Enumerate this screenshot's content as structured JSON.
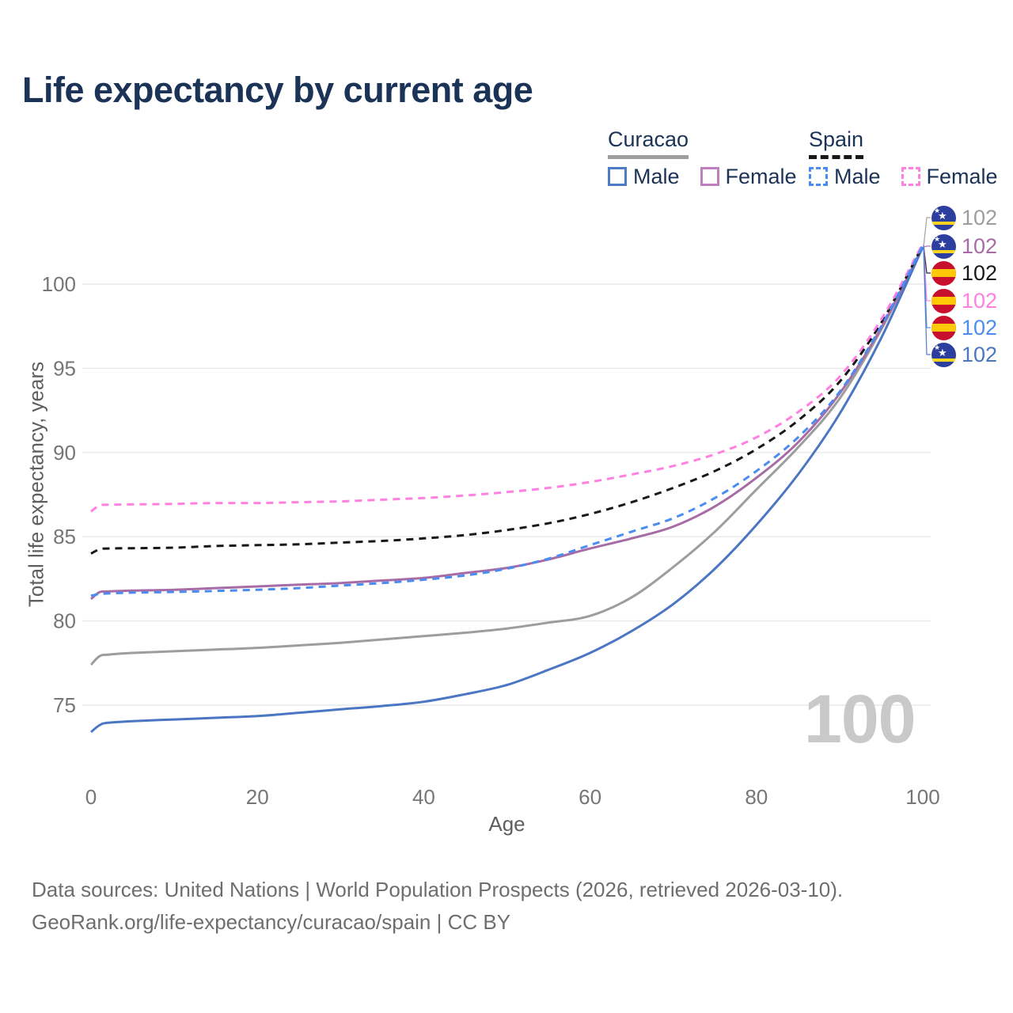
{
  "page": {
    "title": "Life expectancy by current age",
    "watermark_age": "100",
    "footer": {
      "line1": "Data sources: United Nations | World Population Prospects (2026, retrieved 2026-03-10).",
      "line2": "GeoRank.org/life-expectancy/curacao/spain | CC BY"
    }
  },
  "legend": {
    "groups": [
      {
        "label": "Curacao",
        "underline_style": "solid",
        "underline_color": "#9e9e9e",
        "items": [
          {
            "label": "Male",
            "swatch_color": "#4d7bc5",
            "swatch_style": "solid"
          },
          {
            "label": "Female",
            "swatch_color": "#c07fbe",
            "swatch_style": "solid"
          }
        ]
      },
      {
        "label": "Spain",
        "underline_style": "dashed",
        "underline_color": "#181818",
        "items": [
          {
            "label": "Male",
            "swatch_color": "#4a8cf0",
            "swatch_style": "dashed"
          },
          {
            "label": "Female",
            "swatch_color": "#ff80e0",
            "swatch_style": "dashed"
          }
        ]
      }
    ]
  },
  "axes": {
    "x_label": "Age",
    "y_label": "Total life expectancy, years"
  },
  "flag_colors": {
    "curacao": {
      "field": "#2d3f9e",
      "stripe": "#f8d51e",
      "star": "#ffffff"
    },
    "spain": {
      "field": "#c8102e",
      "band": "#ffc808"
    }
  },
  "chart_data": {
    "type": "line",
    "title": "Life expectancy by current age",
    "xlabel": "Age",
    "ylabel": "Total life expectancy, years",
    "x_ticks": [
      0,
      20,
      40,
      60,
      80,
      100
    ],
    "y_ticks": [
      75,
      80,
      85,
      90,
      95,
      100
    ],
    "xlim": [
      0,
      100
    ],
    "ylim": [
      73,
      103
    ],
    "grid": true,
    "legend_position": "top-right",
    "current_age_indicator": "100",
    "ages": [
      0,
      1,
      2,
      5,
      10,
      15,
      20,
      25,
      30,
      35,
      40,
      45,
      50,
      55,
      60,
      65,
      70,
      75,
      80,
      85,
      90,
      95,
      100
    ],
    "series": [
      {
        "name": "Curacao total",
        "country": "Curacao",
        "sex": "total",
        "flag": "curacao",
        "color": "#9d9d9d",
        "dash": false,
        "end_label": "102",
        "values": [
          77.4,
          77.9,
          78.0,
          78.1,
          78.2,
          78.3,
          78.4,
          78.55,
          78.7,
          78.9,
          79.1,
          79.3,
          79.55,
          79.9,
          80.3,
          81.4,
          83.2,
          85.3,
          87.8,
          90.3,
          93.2,
          97.3,
          102.2
        ]
      },
      {
        "name": "Curacao female",
        "country": "Curacao",
        "sex": "female",
        "flag": "curacao",
        "color": "#a76ba5",
        "dash": false,
        "end_label": "102",
        "values": [
          81.3,
          81.7,
          81.75,
          81.8,
          81.85,
          81.95,
          82.05,
          82.15,
          82.25,
          82.4,
          82.55,
          82.85,
          83.15,
          83.65,
          84.3,
          84.9,
          85.6,
          86.8,
          88.5,
          90.6,
          93.5,
          97.4,
          102.2
        ]
      },
      {
        "name": "Spain total",
        "country": "Spain",
        "sex": "total",
        "flag": "spain",
        "color": "#181818",
        "dash": true,
        "end_label": "102",
        "values": [
          84.0,
          84.25,
          84.3,
          84.32,
          84.35,
          84.45,
          84.5,
          84.55,
          84.65,
          84.75,
          84.9,
          85.1,
          85.4,
          85.8,
          86.35,
          87.05,
          87.9,
          88.9,
          90.2,
          91.9,
          94.2,
          97.7,
          102.3
        ]
      },
      {
        "name": "Spain female",
        "country": "Spain",
        "sex": "female",
        "flag": "spain",
        "color": "#ff80e0",
        "dash": true,
        "end_label": "102",
        "values": [
          86.5,
          86.85,
          86.9,
          86.92,
          86.95,
          87.0,
          87.0,
          87.05,
          87.1,
          87.2,
          87.3,
          87.45,
          87.65,
          87.9,
          88.25,
          88.7,
          89.2,
          89.9,
          90.9,
          92.4,
          94.5,
          97.9,
          102.4
        ]
      },
      {
        "name": "Spain male",
        "country": "Spain",
        "sex": "male",
        "flag": "spain",
        "color": "#4a8cf0",
        "dash": true,
        "end_label": "102",
        "values": [
          81.5,
          81.6,
          81.63,
          81.68,
          81.72,
          81.78,
          81.85,
          81.95,
          82.1,
          82.25,
          82.45,
          82.7,
          83.1,
          83.7,
          84.5,
          85.3,
          86.1,
          87.3,
          88.9,
          90.9,
          93.6,
          97.5,
          102.3
        ]
      },
      {
        "name": "Curacao male",
        "country": "Curacao",
        "sex": "male",
        "flag": "curacao",
        "color": "#4b76c4",
        "dash": false,
        "end_label": "102",
        "values": [
          73.4,
          73.8,
          73.95,
          74.05,
          74.15,
          74.25,
          74.35,
          74.55,
          74.75,
          74.95,
          75.2,
          75.65,
          76.2,
          77.1,
          78.1,
          79.4,
          81.0,
          83.1,
          85.7,
          88.7,
          92.3,
          96.8,
          102.2
        ]
      }
    ]
  }
}
